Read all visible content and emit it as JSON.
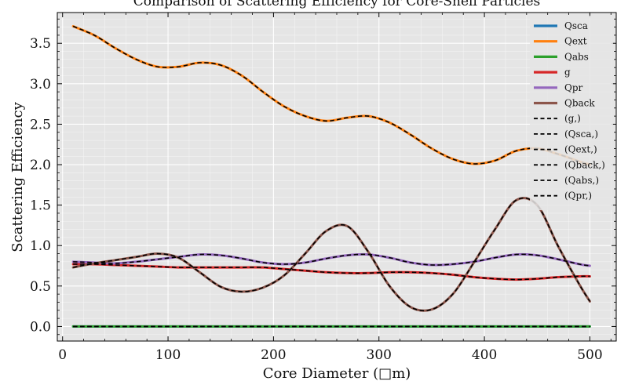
{
  "chart_data": {
    "type": "line",
    "title": "Comparison of Scattering Efficiency for Core-Shell Particles",
    "xlabel": "Core Diameter (□m)",
    "ylabel": "Scattering Efficiency",
    "xlim": [
      -5,
      525
    ],
    "ylim": [
      -0.18,
      3.88
    ],
    "xticks": [
      0,
      100,
      200,
      300,
      400,
      500
    ],
    "yticks": [
      0.0,
      0.5,
      1.0,
      1.5,
      2.0,
      2.5,
      3.0,
      3.5
    ],
    "grid": true,
    "legend_position": "top-right",
    "plot_background": "#e5e5e5",
    "x": [
      10,
      30,
      50,
      70,
      90,
      110,
      130,
      150,
      170,
      190,
      210,
      230,
      250,
      270,
      290,
      310,
      330,
      350,
      370,
      390,
      410,
      430,
      450,
      470,
      490,
      500
    ],
    "series": [
      {
        "name": "Qsca",
        "color": "#1f77b4",
        "style": "solid",
        "values": [
          0.0,
          0.0,
          0.0,
          0.0,
          0.0,
          0.0,
          0.0,
          0.0,
          0.0,
          0.0,
          0.0,
          0.0,
          0.0,
          0.0,
          0.0,
          0.0,
          0.0,
          0.0,
          0.0,
          0.0,
          0.0,
          0.0,
          0.0,
          0.0,
          0.0,
          0.0
        ]
      },
      {
        "name": "Qext",
        "color": "#ff7f0e",
        "style": "solid",
        "values": [
          3.71,
          3.6,
          3.44,
          3.3,
          3.21,
          3.21,
          3.26,
          3.23,
          3.1,
          2.9,
          2.72,
          2.6,
          2.54,
          2.58,
          2.6,
          2.52,
          2.37,
          2.2,
          2.07,
          2.01,
          2.05,
          2.17,
          2.2,
          2.13,
          2.04,
          2.0
        ]
      },
      {
        "name": "Qabs",
        "color": "#2ca02c",
        "style": "solid",
        "values": [
          0.0,
          0.0,
          0.0,
          0.0,
          0.0,
          0.0,
          0.0,
          0.0,
          0.0,
          0.0,
          0.0,
          0.0,
          0.0,
          0.0,
          0.0,
          0.0,
          0.0,
          0.0,
          0.0,
          0.0,
          0.0,
          0.0,
          0.0,
          0.0,
          0.0,
          0.0
        ]
      },
      {
        "name": "g",
        "color": "#d62728",
        "style": "solid",
        "values": [
          0.77,
          0.77,
          0.76,
          0.75,
          0.74,
          0.73,
          0.73,
          0.73,
          0.73,
          0.73,
          0.71,
          0.69,
          0.67,
          0.66,
          0.66,
          0.67,
          0.67,
          0.66,
          0.64,
          0.61,
          0.59,
          0.58,
          0.59,
          0.61,
          0.62,
          0.62
        ]
      },
      {
        "name": "Qpr",
        "color": "#9467bd",
        "style": "solid",
        "values": [
          0.8,
          0.79,
          0.78,
          0.8,
          0.83,
          0.86,
          0.89,
          0.88,
          0.84,
          0.79,
          0.77,
          0.79,
          0.84,
          0.88,
          0.89,
          0.85,
          0.79,
          0.76,
          0.77,
          0.8,
          0.85,
          0.89,
          0.88,
          0.83,
          0.77,
          0.75
        ]
      },
      {
        "name": "Qback",
        "color": "#8c564b",
        "style": "solid",
        "values": [
          0.73,
          0.78,
          0.82,
          0.86,
          0.9,
          0.85,
          0.67,
          0.49,
          0.43,
          0.48,
          0.63,
          0.9,
          1.18,
          1.24,
          0.92,
          0.5,
          0.24,
          0.21,
          0.4,
          0.79,
          1.2,
          1.56,
          1.5,
          0.99,
          0.52,
          0.31
        ]
      },
      {
        "name": "(g,)",
        "color": "#000000",
        "style": "dashed",
        "values": [
          0.77,
          0.77,
          0.76,
          0.75,
          0.74,
          0.73,
          0.73,
          0.73,
          0.73,
          0.73,
          0.71,
          0.69,
          0.67,
          0.66,
          0.66,
          0.67,
          0.67,
          0.66,
          0.64,
          0.61,
          0.59,
          0.58,
          0.59,
          0.61,
          0.62,
          0.62
        ]
      },
      {
        "name": "(Qsca,)",
        "color": "#000000",
        "style": "dashed",
        "values": [
          0.0,
          0.0,
          0.0,
          0.0,
          0.0,
          0.0,
          0.0,
          0.0,
          0.0,
          0.0,
          0.0,
          0.0,
          0.0,
          0.0,
          0.0,
          0.0,
          0.0,
          0.0,
          0.0,
          0.0,
          0.0,
          0.0,
          0.0,
          0.0,
          0.0,
          0.0
        ]
      },
      {
        "name": "(Qext,)",
        "color": "#000000",
        "style": "dashed",
        "values": [
          3.71,
          3.6,
          3.44,
          3.3,
          3.21,
          3.21,
          3.26,
          3.23,
          3.1,
          2.9,
          2.72,
          2.6,
          2.54,
          2.58,
          2.6,
          2.52,
          2.37,
          2.2,
          2.07,
          2.01,
          2.05,
          2.17,
          2.2,
          2.13,
          2.04,
          2.0
        ]
      },
      {
        "name": "(Qback,)",
        "color": "#000000",
        "style": "dashed",
        "values": [
          0.73,
          0.78,
          0.82,
          0.86,
          0.9,
          0.85,
          0.67,
          0.49,
          0.43,
          0.48,
          0.63,
          0.9,
          1.18,
          1.24,
          0.92,
          0.5,
          0.24,
          0.21,
          0.4,
          0.79,
          1.2,
          1.56,
          1.5,
          0.99,
          0.52,
          0.31
        ]
      },
      {
        "name": "(Qabs,)",
        "color": "#000000",
        "style": "dashed",
        "values": [
          0.0,
          0.0,
          0.0,
          0.0,
          0.0,
          0.0,
          0.0,
          0.0,
          0.0,
          0.0,
          0.0,
          0.0,
          0.0,
          0.0,
          0.0,
          0.0,
          0.0,
          0.0,
          0.0,
          0.0,
          0.0,
          0.0,
          0.0,
          0.0,
          0.0,
          0.0
        ]
      },
      {
        "name": "(Qpr,)",
        "color": "#000000",
        "style": "dashed",
        "values": [
          0.8,
          0.79,
          0.78,
          0.8,
          0.83,
          0.86,
          0.89,
          0.88,
          0.84,
          0.79,
          0.77,
          0.79,
          0.84,
          0.88,
          0.89,
          0.85,
          0.79,
          0.76,
          0.77,
          0.8,
          0.85,
          0.89,
          0.88,
          0.83,
          0.77,
          0.75
        ]
      }
    ]
  }
}
